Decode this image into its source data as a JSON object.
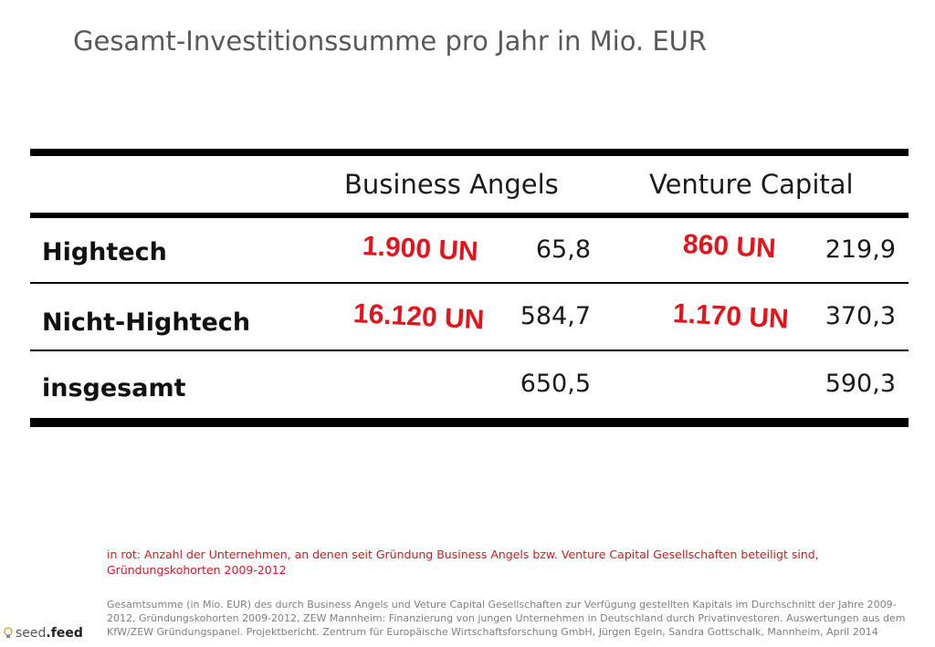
{
  "title": "Gesamt-Investitionssumme pro Jahr in Mio. EUR",
  "table": {
    "columns": [
      "Business Angels",
      "Venture Capital"
    ],
    "rows": [
      {
        "label": "Hightech",
        "ba_count": "1.900 UN",
        "ba_value": "65,8",
        "vc_count": "860 UN",
        "vc_value": "219,9"
      },
      {
        "label": "Nicht-Hightech",
        "ba_count": "16.120 UN",
        "ba_value": "584,7",
        "vc_count": "1.170 UN",
        "vc_value": "370,3"
      },
      {
        "label": "insgesamt",
        "ba_value": "650,5",
        "vc_value": "590,3"
      }
    ]
  },
  "notes": {
    "red": "in rot: Anzahl der Unternehmen, an denen seit Gründung Business Angels bzw. Venture Capital Gesellschaften beteiligt sind, Gründungskohorten 2009-2012",
    "source": "Gesamtsumme (in Mio. EUR) des durch Business Angels und Veture Capital Gesellschaften zur Verfügung gestellten Kapitals im Durchschnitt der Jahre 2009-2012, Gründungskohorten 2009-2012, ZEW Mannheim: Finanzierung von jungen Unternehmen in Deutschland durch Privatinvestoren. Auswertungen aus dem KfW/ZEW Gründungspanel. Projektbericht. Zentrum für Europäische Wirtschaftsforschung GmbH, Jürgen Egeln, Sandra Gottschalk, Mannheim, April 2014"
  },
  "logo": {
    "seed": "seed",
    "feed": ".feed",
    "icon": "lightbulb-icon"
  },
  "colors": {
    "accent_red": "#e3141b",
    "title_grey": "#595959",
    "note_grey": "#7f7f7f"
  }
}
